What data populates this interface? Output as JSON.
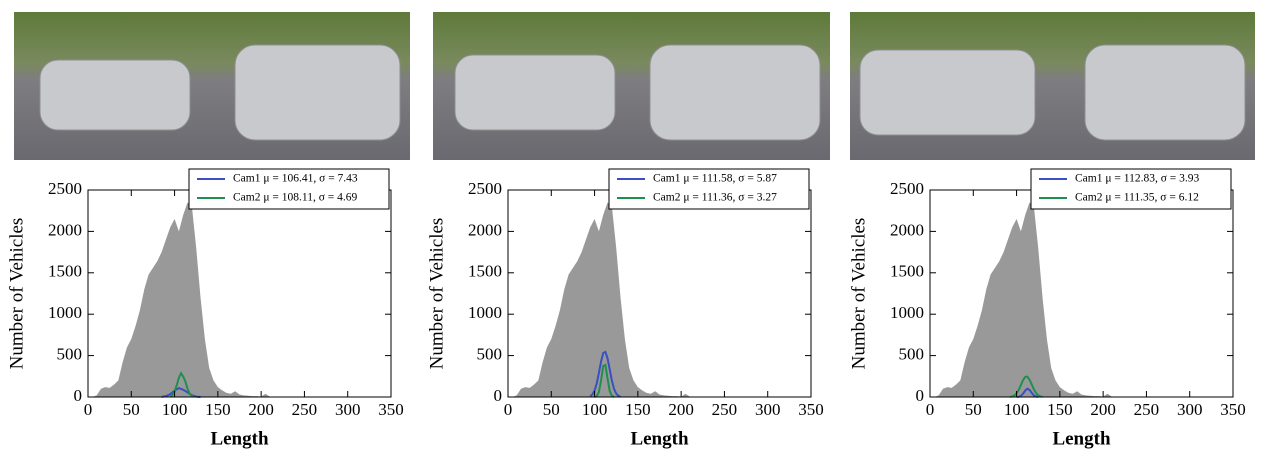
{
  "charts": [
    {
      "type": "area",
      "xlabel": "Length",
      "ylabel": "Number of Vehicles",
      "xlim": [
        0,
        350
      ],
      "xticks": [
        0,
        50,
        100,
        150,
        200,
        250,
        300,
        350
      ],
      "ylim": [
        0,
        2500
      ],
      "yticks": [
        0,
        500,
        1000,
        1500,
        2000,
        2500
      ],
      "legend": "upper right",
      "x": [
        0,
        5,
        10,
        15,
        20,
        25,
        30,
        35,
        40,
        45,
        50,
        55,
        60,
        65,
        70,
        75,
        80,
        85,
        90,
        95,
        100,
        105,
        110,
        115,
        120,
        125,
        130,
        135,
        140,
        145,
        150,
        155,
        160,
        165,
        170,
        175,
        180,
        185,
        190,
        195,
        200,
        205,
        210,
        215,
        220,
        225,
        230,
        235,
        240,
        245,
        250,
        255,
        260,
        265,
        270,
        275,
        280,
        285,
        290,
        295,
        300,
        305,
        310,
        315,
        320,
        325,
        330,
        335,
        340,
        345,
        350
      ],
      "series": [
        {
          "type": "area",
          "color": "#999999",
          "values": [
            0,
            0,
            20,
            100,
            120,
            110,
            150,
            200,
            420,
            600,
            700,
            860,
            1050,
            1300,
            1480,
            1560,
            1640,
            1750,
            1900,
            2050,
            2150,
            2000,
            2200,
            2350,
            2300,
            1800,
            1200,
            700,
            350,
            200,
            120,
            80,
            50,
            40,
            70,
            30,
            20,
            15,
            10,
            10,
            5,
            40,
            5,
            5,
            5,
            0,
            0,
            0,
            0,
            0,
            0,
            0,
            0,
            0,
            0,
            0,
            0,
            0,
            0,
            0,
            0,
            0,
            0,
            0,
            0,
            0,
            0,
            0,
            0,
            0,
            0
          ]
        },
        {
          "type": "line",
          "name": "Cam1 μ = 106.41, σ = 7.43",
          "color": "#3a4fc1",
          "x": [
            85,
            90,
            95,
            100,
            105,
            110,
            115,
            120,
            125,
            130
          ],
          "values": [
            2,
            10,
            34,
            76,
            108,
            87,
            56,
            21,
            5,
            0
          ]
        },
        {
          "type": "line",
          "name": "Cam2 μ = 108.11, σ = 4.69",
          "color": "#1f8f4f",
          "x": [
            95,
            97.5,
            100,
            102.5,
            105,
            107.5,
            110,
            112.5,
            115,
            117.5,
            120,
            122.5
          ],
          "values": [
            6,
            23,
            65,
            142,
            233,
            287,
            246,
            186,
            98,
            39,
            12,
            3
          ]
        }
      ]
    },
    {
      "type": "area",
      "xlabel": "Length",
      "ylabel": "Number of Vehicles",
      "xlim": [
        0,
        350
      ],
      "xticks": [
        0,
        50,
        100,
        150,
        200,
        250,
        300,
        350
      ],
      "ylim": [
        0,
        2500
      ],
      "yticks": [
        0,
        500,
        1000,
        1500,
        2000,
        2500
      ],
      "legend": "upper right",
      "x": [
        0,
        5,
        10,
        15,
        20,
        25,
        30,
        35,
        40,
        45,
        50,
        55,
        60,
        65,
        70,
        75,
        80,
        85,
        90,
        95,
        100,
        105,
        110,
        115,
        120,
        125,
        130,
        135,
        140,
        145,
        150,
        155,
        160,
        165,
        170,
        175,
        180,
        185,
        190,
        195,
        200,
        205,
        210,
        215,
        220,
        225,
        230,
        235,
        240,
        245,
        250,
        255,
        260,
        265,
        270,
        275,
        280,
        285,
        290,
        295,
        300,
        305,
        310,
        315,
        320,
        325,
        330,
        335,
        340,
        345,
        350
      ],
      "series": [
        {
          "type": "area",
          "color": "#999999",
          "values": [
            0,
            0,
            20,
            100,
            120,
            110,
            150,
            200,
            420,
            600,
            700,
            860,
            1050,
            1300,
            1480,
            1560,
            1640,
            1750,
            1900,
            2050,
            2150,
            2000,
            2200,
            2350,
            2300,
            1800,
            1200,
            700,
            350,
            200,
            120,
            80,
            50,
            40,
            70,
            30,
            20,
            15,
            10,
            10,
            5,
            40,
            5,
            5,
            5,
            0,
            0,
            0,
            0,
            0,
            0,
            0,
            0,
            0,
            0,
            0,
            0,
            0,
            0,
            0,
            0,
            0,
            0,
            0,
            0,
            0,
            0,
            0,
            0,
            0,
            0
          ]
        },
        {
          "type": "line",
          "name": "Cam1 μ = 111.58, σ = 5.87",
          "color": "#3a4fc1",
          "x": [
            95,
            97.5,
            100,
            102.5,
            105,
            107.5,
            110,
            112.5,
            115,
            117.5,
            120,
            122.5,
            125,
            127.5,
            130
          ],
          "values": [
            10,
            31,
            78,
            165,
            291,
            431,
            531,
            544,
            466,
            333,
            198,
            98,
            41,
            14,
            4
          ]
        },
        {
          "type": "line",
          "name": "Cam2 μ = 111.36, σ = 3.27",
          "color": "#1f8f4f",
          "x": [
            100,
            102.5,
            105,
            107.5,
            110,
            112.5,
            115,
            117.5,
            120,
            122.5
          ],
          "values": [
            1,
            10,
            60,
            201,
            374,
            387,
            223,
            72,
            13,
            1
          ]
        }
      ]
    },
    {
      "type": "area",
      "xlabel": "Length",
      "ylabel": "Number of Vehicles",
      "xlim": [
        0,
        350
      ],
      "xticks": [
        0,
        50,
        100,
        150,
        200,
        250,
        300,
        350
      ],
      "ylim": [
        0,
        2500
      ],
      "yticks": [
        0,
        500,
        1000,
        1500,
        2000,
        2500
      ],
      "legend": "upper right",
      "x": [
        0,
        5,
        10,
        15,
        20,
        25,
        30,
        35,
        40,
        45,
        50,
        55,
        60,
        65,
        70,
        75,
        80,
        85,
        90,
        95,
        100,
        105,
        110,
        115,
        120,
        125,
        130,
        135,
        140,
        145,
        150,
        155,
        160,
        165,
        170,
        175,
        180,
        185,
        190,
        195,
        200,
        205,
        210,
        215,
        220,
        225,
        230,
        235,
        240,
        245,
        250,
        255,
        260,
        265,
        270,
        275,
        280,
        285,
        290,
        295,
        300,
        305,
        310,
        315,
        320,
        325,
        330,
        335,
        340,
        345,
        350
      ],
      "series": [
        {
          "type": "area",
          "color": "#999999",
          "values": [
            0,
            0,
            20,
            100,
            120,
            110,
            150,
            200,
            420,
            600,
            700,
            860,
            1050,
            1300,
            1480,
            1560,
            1640,
            1750,
            1900,
            2050,
            2150,
            2000,
            2200,
            2350,
            2300,
            1800,
            1200,
            700,
            350,
            200,
            120,
            80,
            50,
            40,
            70,
            30,
            20,
            15,
            10,
            10,
            5,
            40,
            5,
            5,
            5,
            0,
            0,
            0,
            0,
            0,
            0,
            0,
            0,
            0,
            0,
            0,
            0,
            0,
            0,
            0,
            0,
            0,
            0,
            0,
            0,
            0,
            0,
            0,
            0,
            0,
            0
          ]
        },
        {
          "type": "line",
          "name": "Cam1 μ = 112.83, σ = 3.93",
          "color": "#3a4fc1",
          "x": [
            100,
            102.5,
            105,
            107.5,
            110,
            112.5,
            115,
            117.5,
            120,
            122.5,
            125
          ],
          "values": [
            1,
            3,
            14,
            40,
            78,
            100,
            86,
            49,
            19,
            5,
            1
          ]
        },
        {
          "type": "line",
          "name": "Cam2 μ = 111.35, σ = 6.12",
          "color": "#1f8f4f",
          "x": [
            92.5,
            95,
            97.5,
            100,
            102.5,
            105,
            107.5,
            110,
            112.5,
            115,
            117.5,
            120,
            122.5,
            125,
            127.5,
            130
          ],
          "values": [
            2,
            7,
            19,
            44,
            87,
            145,
            205,
            244,
            246,
            209,
            152,
            92,
            48,
            21,
            8,
            2
          ]
        }
      ]
    }
  ]
}
